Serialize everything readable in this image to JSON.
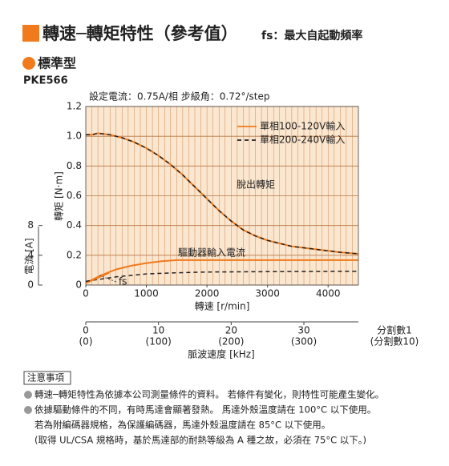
{
  "header": {
    "title": "轉速─轉矩特性（參考值）",
    "fs_note": "fs：最大自起動頻率",
    "category": "標準型",
    "model": "PKE566"
  },
  "chart_data": {
    "type": "line",
    "conditions": "設定電流：0.75A/相   步級角：0.72°/step",
    "xlabel": "轉速 [r/min]",
    "ylabel": "轉矩 [N·m]",
    "y2label": "電流 [A]",
    "xlim": [
      0,
      4500
    ],
    "xticks": [
      0,
      1000,
      2000,
      3000,
      4000
    ],
    "x_minor": 100,
    "ylim": [
      0,
      1.2
    ],
    "yticks": [
      0,
      0.2,
      0.4,
      0.6,
      0.8,
      {
        "value": 1,
        "label": "1.0"
      },
      1.2
    ],
    "y2lim": [
      0,
      8
    ],
    "y2ticks": [
      0,
      4,
      8
    ],
    "grid": true,
    "legend": "upper right",
    "x2": {
      "label": "脈波速度 [kHz]",
      "lim": [
        0,
        37.5
      ],
      "ticks": [
        0,
        10,
        20,
        30
      ],
      "ticks_div10": [
        "(0)",
        "(100)",
        "(200)",
        "(300)"
      ],
      "row_labels": [
        "分割數1",
        "(分割數10)"
      ]
    },
    "annotations": {
      "torque": "脫出轉矩",
      "current": "驅動器輸入電流",
      "fs": "fs"
    },
    "series": [
      {
        "name": "單相100-120V輸入",
        "color": "#f07a1c",
        "dash": false,
        "x": [
          0,
          100,
          200,
          400,
          600,
          800,
          1000,
          1200,
          1400,
          1600,
          1800,
          2000,
          2200,
          2400,
          2600,
          2800,
          3000,
          3200,
          3400,
          3600,
          3800,
          4000,
          4200,
          4500
        ],
        "values": [
          1.01,
          1.01,
          1.02,
          1.01,
          0.99,
          0.96,
          0.92,
          0.87,
          0.81,
          0.74,
          0.66,
          0.58,
          0.5,
          0.43,
          0.37,
          0.33,
          0.3,
          0.28,
          0.26,
          0.25,
          0.24,
          0.23,
          0.22,
          0.21
        ]
      },
      {
        "name": "單相200-240V輸入",
        "color": "#222222",
        "dash": true,
        "x": [
          0,
          100,
          200,
          400,
          600,
          800,
          1000,
          1200,
          1400,
          1600,
          1800,
          2000,
          2200,
          2400,
          2600,
          2800,
          3000,
          3200,
          3400,
          3600,
          3800,
          4000,
          4200,
          4500
        ],
        "values": [
          1.01,
          1.01,
          1.02,
          1.01,
          0.99,
          0.96,
          0.92,
          0.87,
          0.81,
          0.74,
          0.66,
          0.58,
          0.5,
          0.43,
          0.37,
          0.33,
          0.3,
          0.28,
          0.26,
          0.25,
          0.24,
          0.23,
          0.22,
          0.21
        ]
      },
      {
        "name": "單相100-120V輸入",
        "color": "#f07a1c",
        "dash": false,
        "axis": "y2",
        "x": [
          0,
          250,
          500,
          750,
          1000,
          1250,
          1500,
          2000,
          3000,
          4500
        ],
        "values": [
          0.3,
          1.3,
          2.1,
          2.6,
          2.95,
          3.2,
          3.35,
          3.35,
          3.35,
          3.35
        ]
      },
      {
        "name": "單相200-240V輸入",
        "color": "#222222",
        "dash": true,
        "axis": "y2",
        "x": [
          0,
          250,
          500,
          1000,
          1500,
          2000,
          3000,
          4500
        ],
        "values": [
          0.5,
          0.8,
          1.1,
          1.5,
          1.65,
          1.75,
          1.8,
          1.85
        ]
      }
    ]
  },
  "notes": {
    "heading": "注意事項",
    "lines": [
      "轉速─轉矩特性為依據本公司測量條件的資料。 若條件有變化，則特性可能產生變化。",
      "依據驅動條件的不同，有時馬達會顯著發熱。 馬達外殼溫度請在 100°C 以下使用。",
      "若為附編碼器規格，為保護編碼器，馬達外殼溫度請在 85°C 以下使用。",
      "(取得 UL/CSA 規格時，基於馬達部的耐熱等級為 A 種之故，必須在 75°C 以下。)"
    ]
  }
}
